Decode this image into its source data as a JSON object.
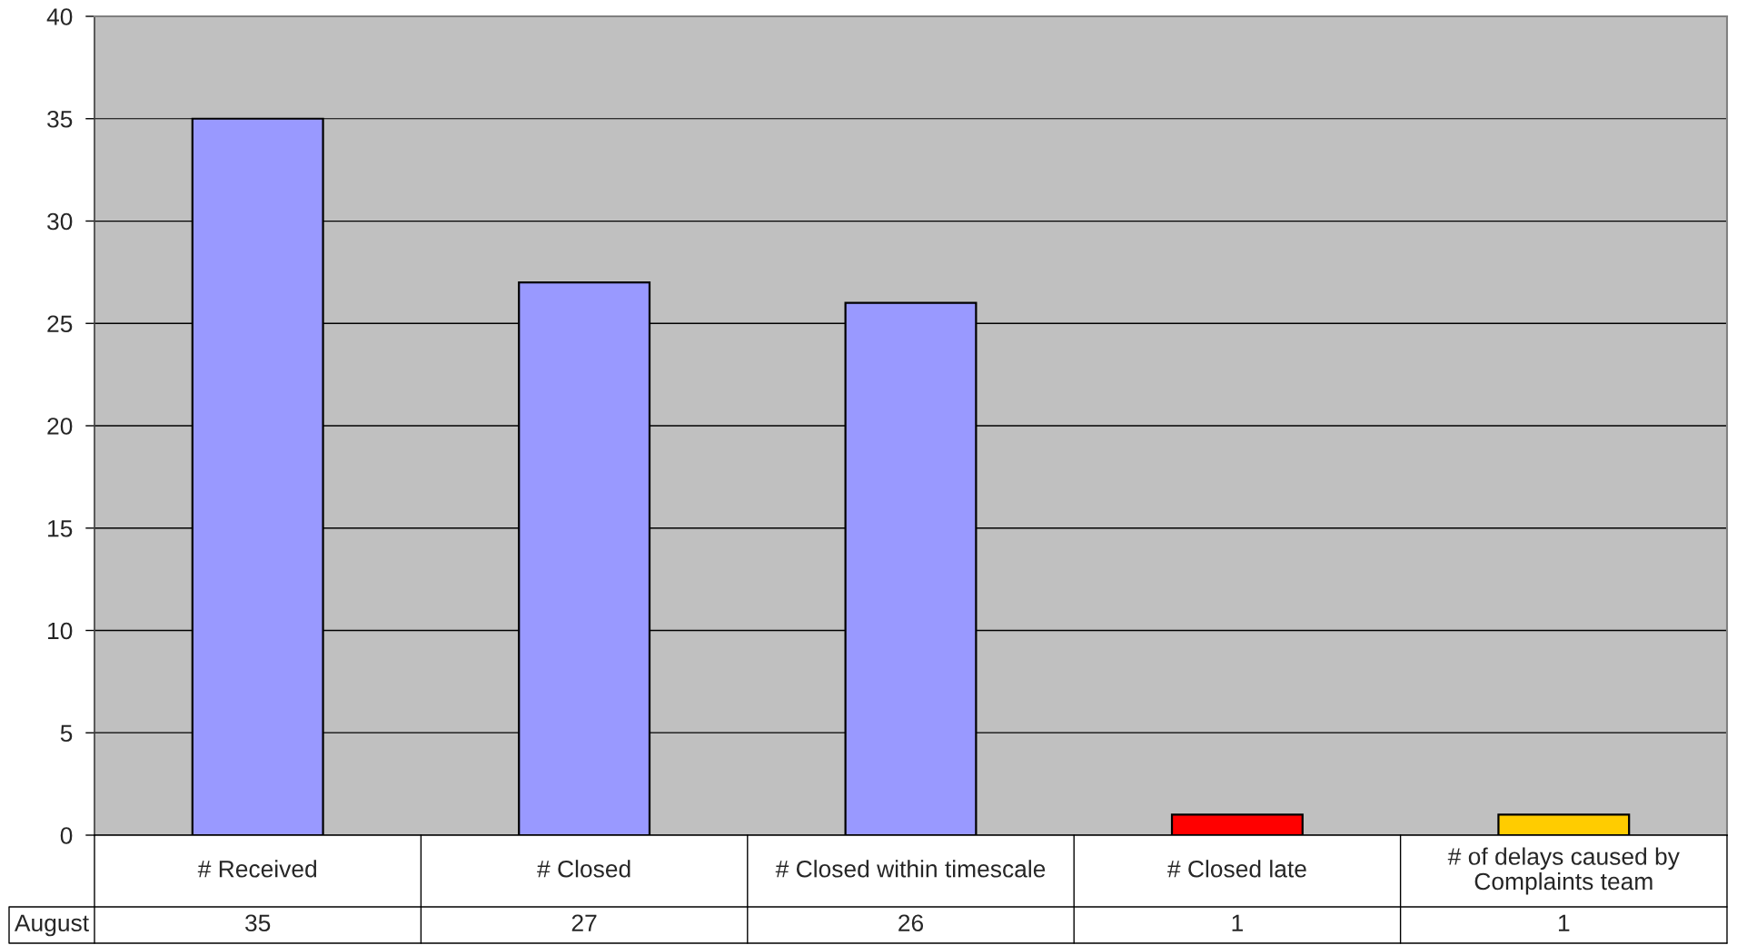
{
  "chart_data": {
    "type": "bar",
    "categories": [
      "# Received",
      "# Closed",
      "# Closed within timescale",
      "# Closed late",
      "# of delays caused by Complaints team"
    ],
    "series": [
      {
        "name": "August",
        "colors": [
          "#9999ff",
          "#9999ff",
          "#9999ff",
          "#ff0000",
          "#ffcc00"
        ],
        "values": [
          35,
          27,
          26,
          1,
          1
        ]
      }
    ],
    "ylim": [
      0,
      40
    ],
    "yticks": [
      0,
      5,
      10,
      15,
      20,
      25,
      30,
      35,
      40
    ],
    "grid": "y",
    "data_labels": true
  }
}
